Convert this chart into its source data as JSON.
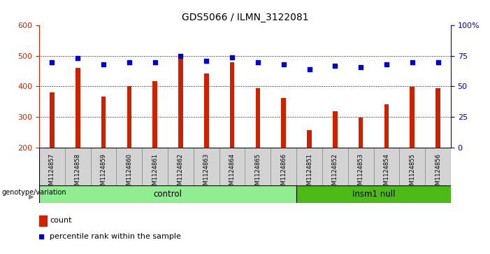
{
  "title": "GDS5066 / ILMN_3122081",
  "samples": [
    "GSM1124857",
    "GSM1124858",
    "GSM1124859",
    "GSM1124860",
    "GSM1124861",
    "GSM1124862",
    "GSM1124863",
    "GSM1124864",
    "GSM1124865",
    "GSM1124866",
    "GSM1124851",
    "GSM1124852",
    "GSM1124853",
    "GSM1124854",
    "GSM1124855",
    "GSM1124856"
  ],
  "counts": [
    380,
    460,
    367,
    400,
    418,
    507,
    442,
    480,
    395,
    362,
    257,
    318,
    297,
    341,
    398,
    393
  ],
  "percentiles": [
    70,
    73,
    68,
    70,
    70,
    75,
    71,
    74,
    70,
    68,
    64,
    67,
    66,
    68,
    70,
    70
  ],
  "n_control": 10,
  "ylim_left": [
    200,
    600
  ],
  "ylim_right": [
    0,
    100
  ],
  "yticks_left": [
    200,
    300,
    400,
    500,
    600
  ],
  "yticks_right": [
    0,
    25,
    50,
    75,
    100
  ],
  "ytick_labels_right": [
    "0",
    "25",
    "50",
    "75",
    "100%"
  ],
  "bar_color": "#CC2200",
  "dot_color": "#0000CC",
  "bg_color": "#FFFFFF",
  "grid_color": "#000000",
  "label_control": "control",
  "label_insm": "Insm1 null",
  "color_control": "#90EE90",
  "color_insm": "#4CBB17",
  "xlabel_genotype": "genotype/variation",
  "legend_count": "count",
  "legend_percentile": "percentile rank within the sample",
  "tick_bg_color": "#D3D3D3",
  "grid_dotted_at": [
    300,
    400,
    500
  ]
}
